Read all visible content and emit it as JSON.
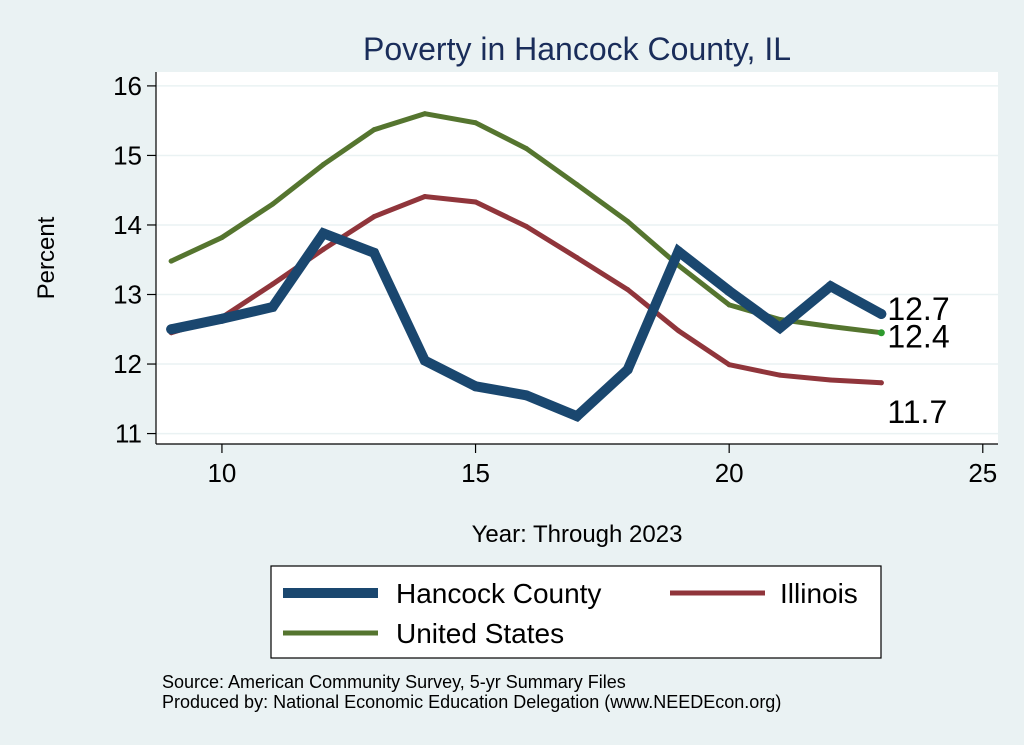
{
  "chart_data": {
    "type": "line",
    "title": "Poverty in Hancock County, IL",
    "xlabel": "Year: Through 2023",
    "ylabel": "Percent",
    "xlim": [
      8.7,
      25.3
    ],
    "ylim": [
      10.85,
      16.2
    ],
    "xticks": [
      10,
      15,
      20,
      25
    ],
    "yticks": [
      11,
      12,
      13,
      14,
      15,
      16
    ],
    "grid": true,
    "series": [
      {
        "name": "Hancock County",
        "color": "#1a476f",
        "x": [
          9,
          10,
          11,
          12,
          13,
          14,
          15,
          16,
          17,
          18,
          19,
          20,
          21,
          22,
          23
        ],
        "values": [
          12.5,
          12.65,
          12.82,
          13.88,
          13.6,
          12.05,
          11.68,
          11.55,
          11.25,
          11.92,
          13.62,
          13.05,
          12.52,
          13.12,
          12.72
        ],
        "end_label": "12.7"
      },
      {
        "name": "Illinois",
        "color": "#90353b",
        "x": [
          9,
          10,
          11,
          12,
          13,
          14,
          15,
          16,
          17,
          18,
          19,
          20,
          21,
          22,
          23
        ],
        "values": [
          12.45,
          12.67,
          13.15,
          13.65,
          14.12,
          14.41,
          14.33,
          13.98,
          13.53,
          13.07,
          12.48,
          11.99,
          11.84,
          11.77,
          11.73
        ],
        "end_label": "11.7"
      },
      {
        "name": "United States",
        "color": "#55752f",
        "x": [
          9,
          10,
          11,
          12,
          13,
          14,
          15,
          16,
          17,
          18,
          19,
          20,
          21,
          22,
          23
        ],
        "values": [
          13.48,
          13.82,
          14.3,
          14.87,
          15.37,
          15.6,
          15.47,
          15.1,
          14.58,
          14.05,
          13.42,
          12.85,
          12.64,
          12.54,
          12.45
        ],
        "end_label": "12.4"
      }
    ]
  },
  "legend": {
    "items": [
      "Hancock County",
      "Illinois",
      "United States"
    ]
  },
  "footer": {
    "source": "Source: American Community Survey, 5-yr Summary Files",
    "produced": "Produced by: National Economic Education Delegation (www.NEEDEcon.org)"
  }
}
